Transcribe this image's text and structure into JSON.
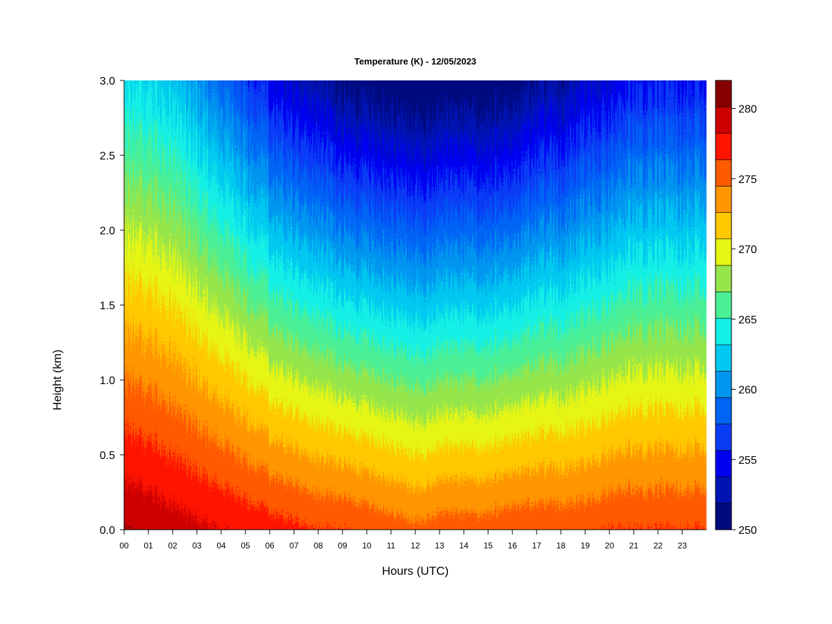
{
  "chart_data": {
    "type": "heatmap",
    "title": "Temperature (K) - 12/05/2023",
    "xlabel": "Hours (UTC)",
    "ylabel": "Height (km)",
    "x_ticks": [
      "00",
      "01",
      "02",
      "03",
      "04",
      "05",
      "06",
      "07",
      "08",
      "09",
      "10",
      "11",
      "12",
      "13",
      "14",
      "15",
      "16",
      "17",
      "18",
      "19",
      "20",
      "21",
      "22",
      "23"
    ],
    "x_range": [
      0,
      24
    ],
    "y_ticks": [
      "0.0",
      "0.5",
      "1.0",
      "1.5",
      "2.0",
      "2.5",
      "3.0"
    ],
    "y_range": [
      0,
      3
    ],
    "colorbar": {
      "range": [
        250,
        282
      ],
      "step": 2,
      "tick_labels": [
        "250",
        "255",
        "260",
        "265",
        "270",
        "275",
        "280"
      ],
      "colors": [
        "#000a7f",
        "#0014b4",
        "#0000f0",
        "#0a3cf5",
        "#0064f5",
        "#0096f0",
        "#00c8f0",
        "#14f0e6",
        "#4bf096",
        "#96e64b",
        "#e6f514",
        "#ffc800",
        "#ff9600",
        "#ff5a00",
        "#ff1400",
        "#cd0000",
        "#870000"
      ]
    },
    "surface_temperature_by_hour": [
      282,
      281.5,
      281,
      280.5,
      280,
      279.5,
      279,
      278.5,
      278,
      278,
      277.5,
      277,
      276.5,
      277,
      277,
      277,
      277.5,
      277.5,
      277.5,
      277.5,
      278,
      278,
      278,
      278
    ],
    "lapse_rate_k_per_km": [
      6,
      6,
      6,
      6.5,
      7,
      7.5,
      8,
      8.5,
      8.5,
      9,
      9,
      9,
      9,
      9,
      9,
      9,
      9,
      8.5,
      8.5,
      8,
      8,
      7.5,
      7.5,
      7.5
    ]
  }
}
